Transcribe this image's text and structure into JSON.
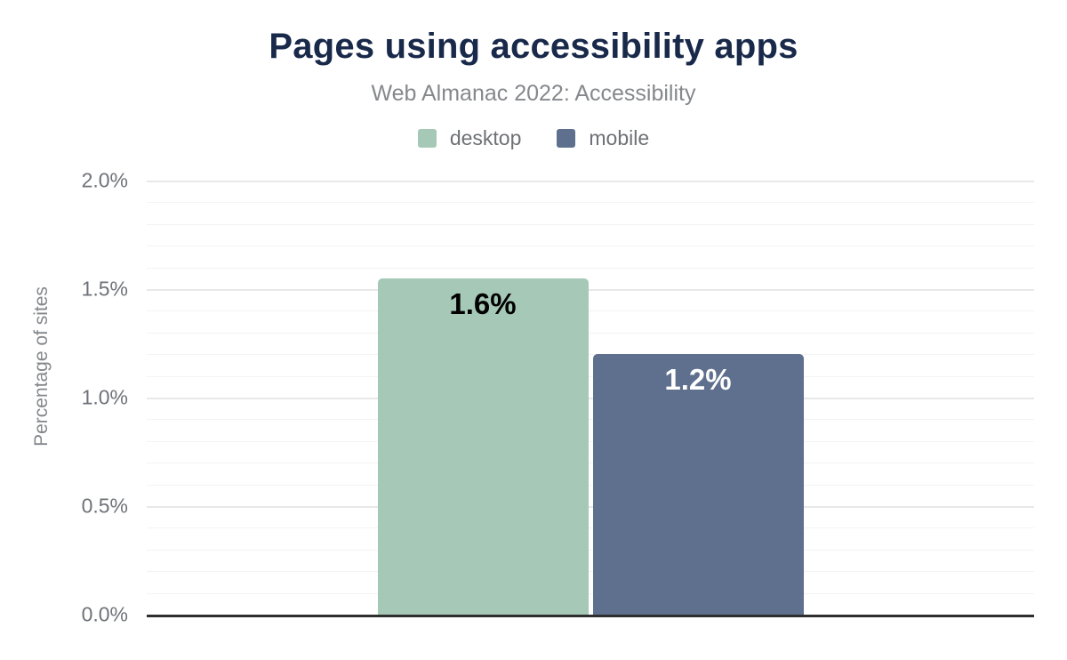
{
  "header": {
    "title": "Pages using accessibility apps",
    "subtitle": "Web Almanac 2022: Accessibility"
  },
  "legend": {
    "items": [
      {
        "label": "desktop",
        "color": "#a6c8b7"
      },
      {
        "label": "mobile",
        "color": "#5e708e"
      }
    ]
  },
  "axes": {
    "y_title": "Percentage of sites"
  },
  "chart_data": {
    "type": "bar",
    "title": "Pages using accessibility apps",
    "subtitle": "Web Almanac 2022: Accessibility",
    "categories": [
      "desktop",
      "mobile"
    ],
    "values": [
      1.55,
      1.2
    ],
    "bar_labels": [
      "1.6%",
      "1.2%"
    ],
    "series_colors": [
      "#a6c8b7",
      "#5e708e"
    ],
    "bar_label_colors": [
      "#000000",
      "#ffffff"
    ],
    "xlabel": "",
    "ylabel": "Percentage of sites",
    "ylim": [
      0,
      2.0
    ],
    "yticks": [
      {
        "value": 0.0,
        "label": "0.0%"
      },
      {
        "value": 0.5,
        "label": "0.5%"
      },
      {
        "value": 1.0,
        "label": "1.0%"
      },
      {
        "value": 1.5,
        "label": "1.5%"
      },
      {
        "value": 2.0,
        "label": "2.0%"
      }
    ],
    "grid": {
      "show": true,
      "minor_step": 0.1,
      "major_step": 0.5
    },
    "legend_position": "top"
  },
  "colors": {
    "title": "#19294a",
    "subtitle": "#85888c",
    "tick_label": "#6e7278",
    "axis_line": "#2e2e2e",
    "grid_major": "#e8e8e8",
    "grid_minor": "#f3f3f3"
  }
}
